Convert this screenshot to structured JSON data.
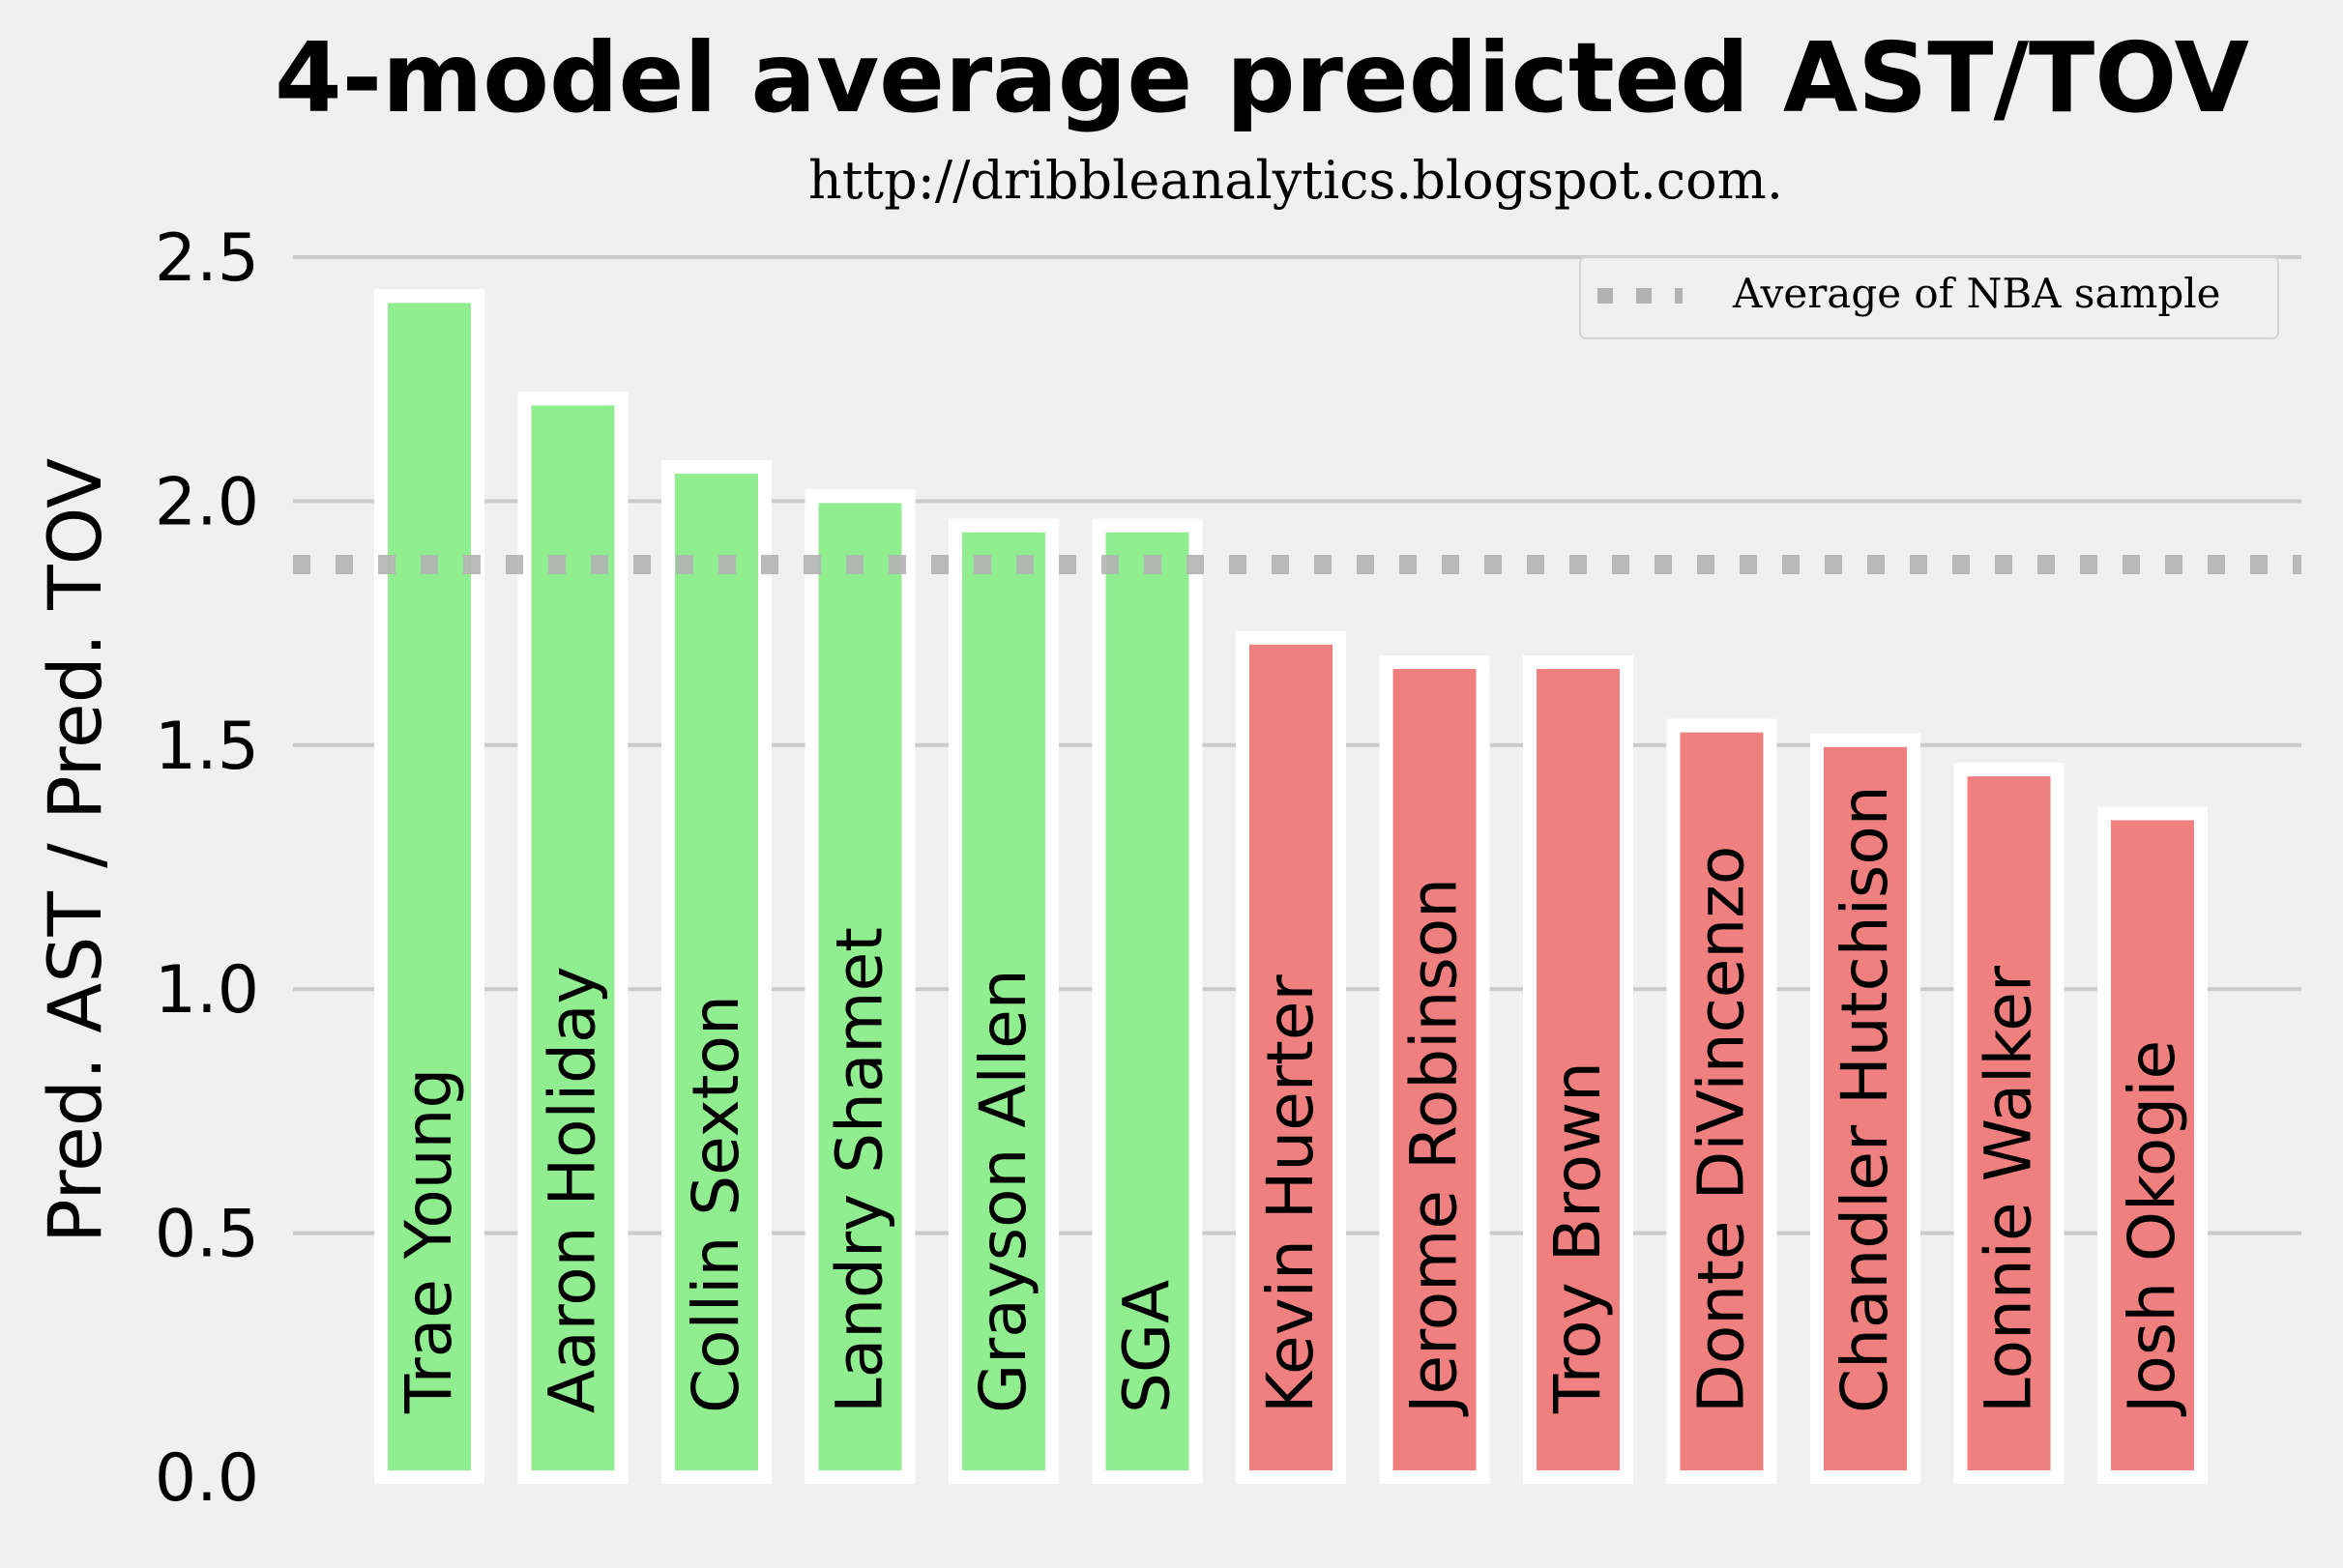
{
  "chart_data": {
    "type": "bar",
    "title": "4-model average predicted AST/TOV",
    "subtitle": "http://dribbleanalytics.blogspot.com.",
    "ylabel": "Pred. AST / Pred. TOV",
    "xlabel": "",
    "ylim": [
      0,
      2.5
    ],
    "yticks": [
      "0.0",
      "0.5",
      "1.0",
      "1.5",
      "2.0",
      "2.5"
    ],
    "grid": true,
    "categories": [
      "Trae Young",
      "Aaron Holiday",
      "Collin Sexton",
      "Landry Shamet",
      "Grayson Allen",
      "SGA",
      "Kevin Huerter",
      "Jerome Robinson",
      "Troy Brown",
      "Donte DiVincenzo",
      "Chandler Hutchison",
      "Lonnie Walker",
      "Josh Okogie"
    ],
    "values": [
      2.42,
      2.21,
      2.07,
      2.01,
      1.95,
      1.95,
      1.72,
      1.67,
      1.67,
      1.54,
      1.51,
      1.45,
      1.36
    ],
    "above_color": "#90ee90",
    "below_color": "#f08080",
    "reference_line": {
      "label": "Average of NBA sample",
      "value": 1.87,
      "color": "#b3b3b3"
    },
    "legend_position": "top-right"
  }
}
